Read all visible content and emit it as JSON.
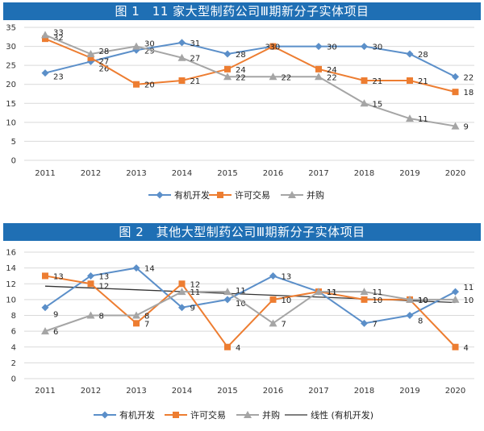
{
  "chart_data": [
    {
      "type": "line",
      "title": "图 1　11 家大型制药公司Ⅲ期新分子实体项目",
      "categories": [
        "2011",
        "2012",
        "2013",
        "2014",
        "2015",
        "2016",
        "2017",
        "2018",
        "2019",
        "2020"
      ],
      "ylim": [
        0,
        35
      ],
      "yticks": [
        0,
        5,
        10,
        15,
        20,
        25,
        30,
        35
      ],
      "grid": true,
      "legend": "bottom",
      "series": [
        {
          "name": "有机开发",
          "color": "#5b8fc9",
          "marker": "diamond",
          "values": [
            23,
            26,
            29,
            31,
            28,
            30,
            30,
            30,
            28,
            22
          ]
        },
        {
          "name": "许可交易",
          "color": "#ed7d31",
          "marker": "square",
          "values": [
            32,
            27,
            20,
            21,
            24,
            30,
            24,
            21,
            21,
            18
          ]
        },
        {
          "name": "并购",
          "color": "#a5a5a5",
          "marker": "triangle",
          "values": [
            33,
            28,
            30,
            27,
            22,
            22,
            22,
            15,
            11,
            9
          ]
        }
      ]
    },
    {
      "type": "line",
      "title": "图 2　其他大型制药公司Ⅲ期新分子实体项目",
      "categories": [
        "2011",
        "2012",
        "2013",
        "2014",
        "2015",
        "2016",
        "2017",
        "2018",
        "2019",
        "2020"
      ],
      "ylim": [
        0,
        16
      ],
      "yticks": [
        0,
        2,
        4,
        6,
        8,
        10,
        12,
        14,
        16
      ],
      "grid": true,
      "legend": "bottom",
      "series": [
        {
          "name": "有机开发",
          "color": "#5b8fc9",
          "marker": "diamond",
          "values": [
            9,
            13,
            14,
            9,
            10,
            13,
            11,
            7,
            8,
            11
          ]
        },
        {
          "name": "许可交易",
          "color": "#ed7d31",
          "marker": "square",
          "values": [
            13,
            12,
            7,
            12,
            4,
            10,
            11,
            10,
            10,
            4
          ]
        },
        {
          "name": "并购",
          "color": "#a5a5a5",
          "marker": "triangle",
          "values": [
            6,
            8,
            8,
            11,
            11,
            7,
            11,
            11,
            10,
            10
          ]
        }
      ],
      "trendline": {
        "name": "线性 (有机开发)",
        "color": "#333333",
        "values": [
          11.7,
          11.47,
          11.24,
          11.01,
          10.78,
          10.55,
          10.32,
          10.09,
          9.86,
          9.63
        ]
      }
    }
  ]
}
